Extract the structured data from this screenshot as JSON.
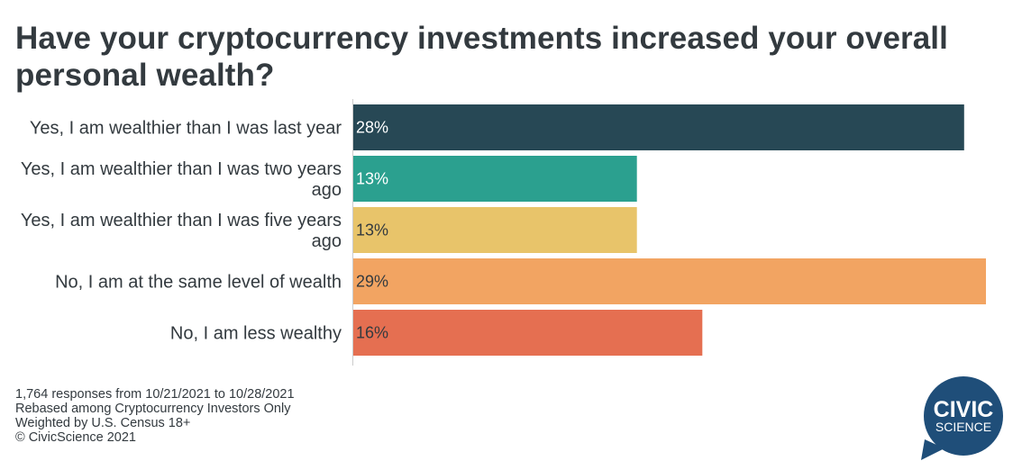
{
  "title": "Have your cryptocurrency investments increased your overall personal wealth?",
  "chart_data": {
    "type": "bar",
    "orientation": "horizontal",
    "categories": [
      [
        "Yes, I am wealthier than I was last year"
      ],
      [
        "Yes, I am wealthier than I was two years",
        "ago"
      ],
      [
        "Yes, I am wealthier than I was five years",
        "ago"
      ],
      [
        "No, I am at the same level of wealth"
      ],
      [
        "No, I am less wealthy"
      ]
    ],
    "values": [
      28,
      13,
      13,
      29,
      16
    ],
    "value_labels": [
      "28%",
      "13%",
      "13%",
      "29%",
      "16%"
    ],
    "colors": [
      "#274855",
      "#2ba08f",
      "#e8c46a",
      "#f2a462",
      "#e56f51"
    ],
    "label_colors": [
      "#ffffff",
      "#ffffff",
      "#333a3f",
      "#333a3f",
      "#333a3f"
    ],
    "xlim": [
      0,
      29
    ],
    "grid": false,
    "legend": "none"
  },
  "footer": {
    "lines": [
      "1,764 responses from 10/21/2021 to 10/28/2021",
      "Rebased among Cryptocurrency Investors Only",
      "Weighted by U.S. Census 18+",
      "© CivicScience 2021"
    ]
  },
  "logo": {
    "line1": "CIVIC",
    "line2": "SCIENCE",
    "color": "#1f4e79"
  }
}
